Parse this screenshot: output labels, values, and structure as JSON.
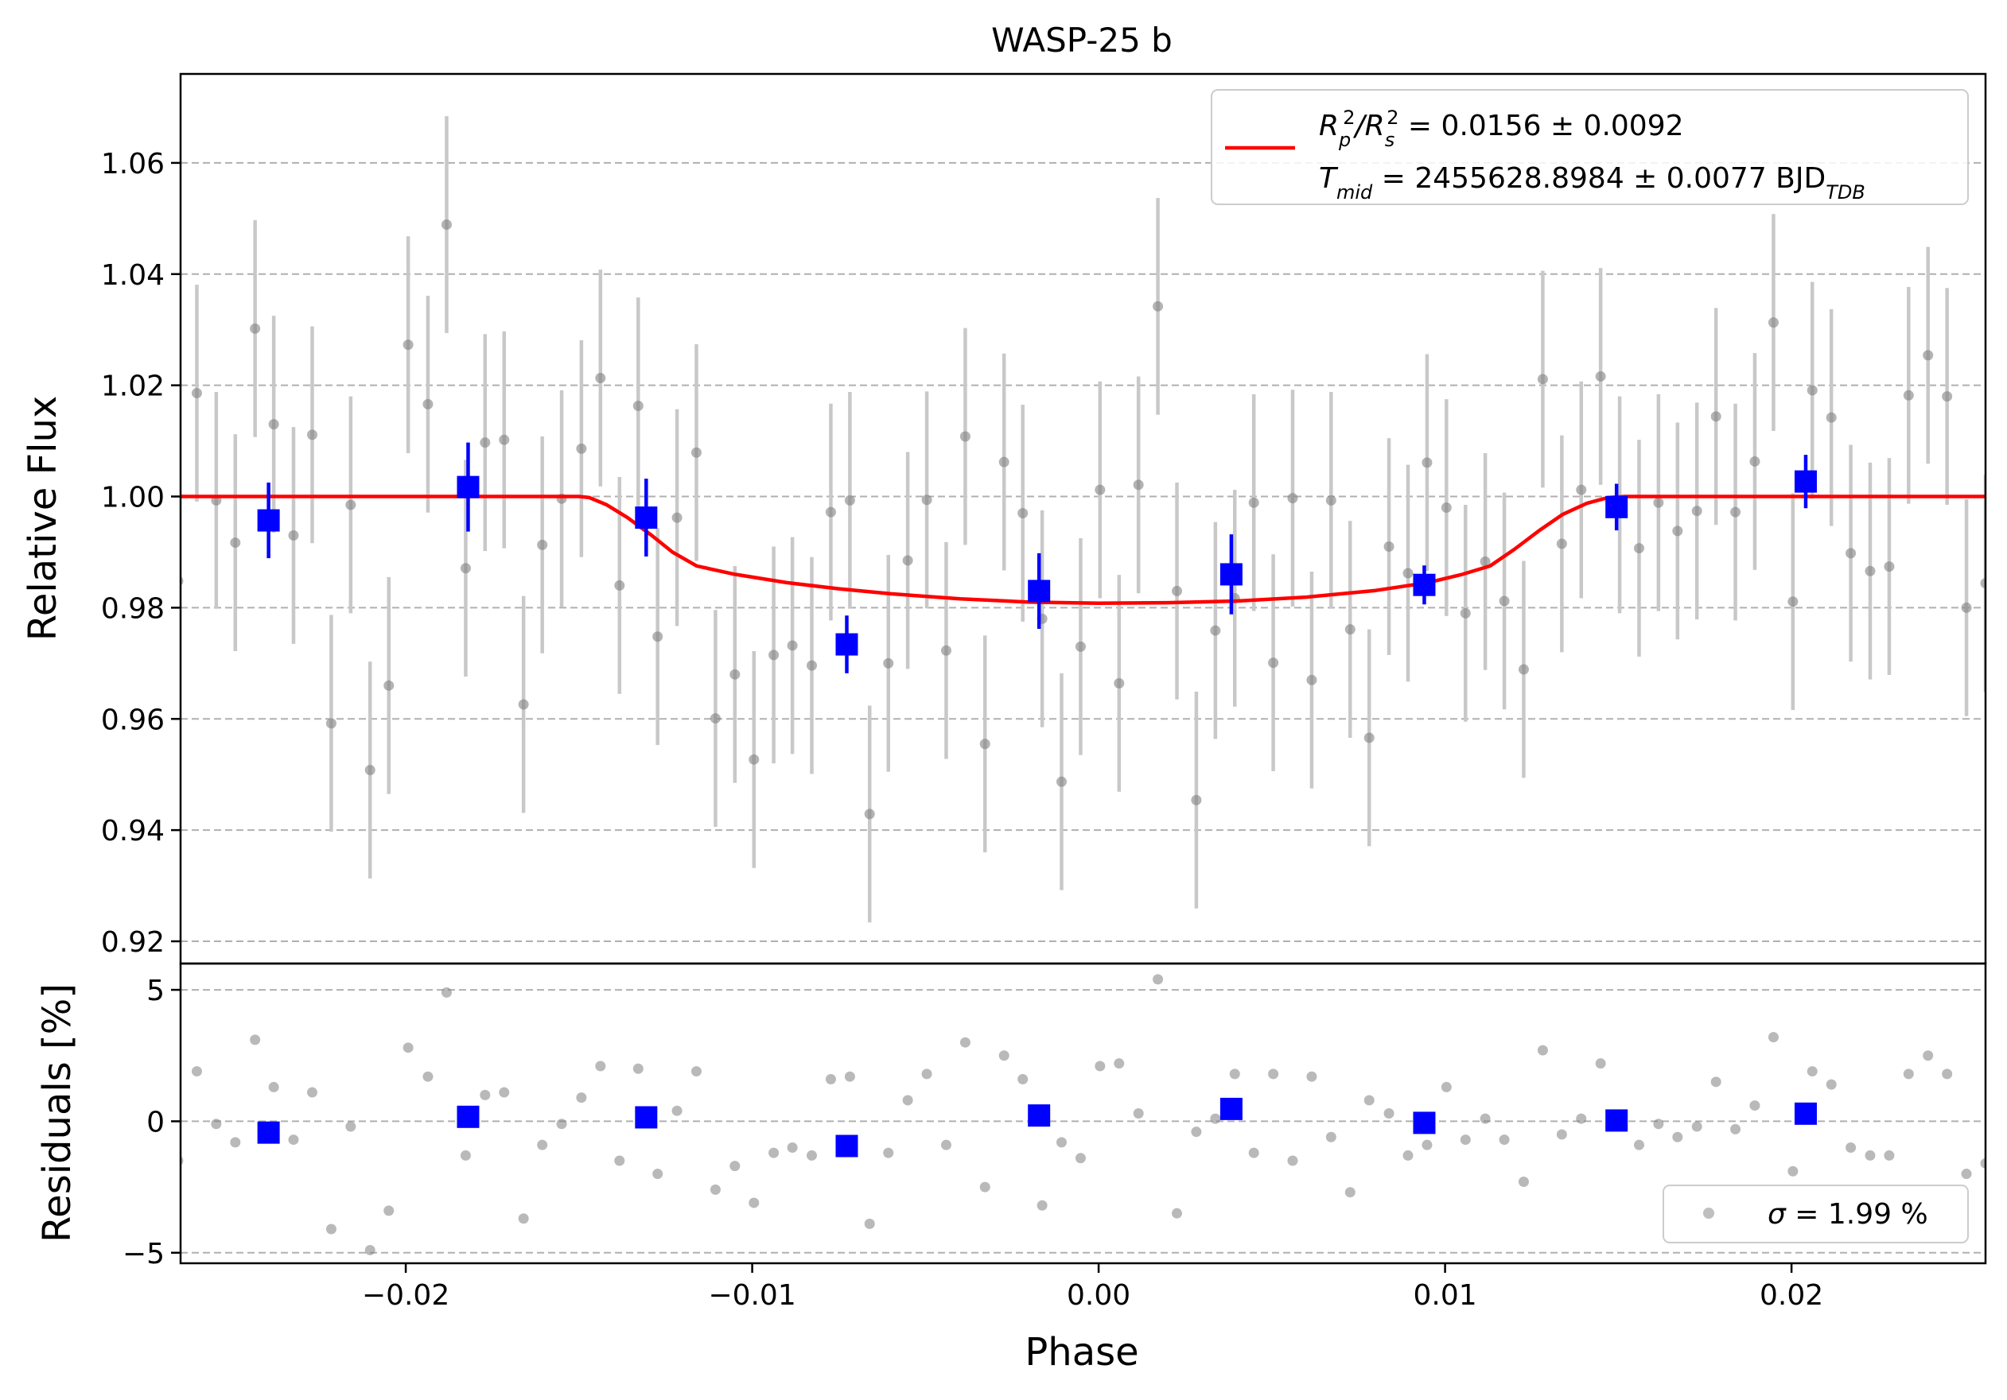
{
  "chart_data": {
    "type": "scatter",
    "title": "WASP-25 b",
    "top_panel": {
      "ylabel": "Relative Flux",
      "ylim": [
        0.916,
        1.076
      ],
      "yticks": [
        0.92,
        0.94,
        0.96,
        0.98,
        1.0,
        1.02,
        1.04,
        1.06
      ],
      "ytick_labels": [
        "0.92",
        "0.94",
        "0.96",
        "0.98",
        "1.00",
        "1.02",
        "1.04",
        "1.06"
      ],
      "grid": "horizontal dashed",
      "legend": {
        "placement": "top-right",
        "line1_parts": [
          "R",
          "p",
          "2",
          "/R",
          "s",
          "2",
          " = 0.0156 ± 0.0092"
        ],
        "line2_parts": [
          "T",
          "mid",
          " = 2455628.8984 ± 0.0077 BJD",
          "TDB"
        ]
      },
      "series": [
        {
          "kind": "raw",
          "color": "#808080",
          "errcolor": "#c8c8c8",
          "x": [
            -0.02657,
            -0.02603,
            -0.02547,
            -0.02492,
            -0.02435,
            -0.02381,
            -0.02324,
            -0.0227,
            -0.02215,
            -0.02159,
            -0.02103,
            -0.02049,
            -0.01993,
            -0.01936,
            -0.01882,
            -0.01827,
            -0.01771,
            -0.01716,
            -0.0166,
            -0.01606,
            -0.0155,
            -0.01493,
            -0.01438,
            -0.01383,
            -0.01329,
            -0.01273,
            -0.01217,
            -0.01161,
            -0.01106,
            -0.0105,
            -0.00995,
            -0.00938,
            -0.00884,
            -0.00828,
            -0.00773,
            -0.00718,
            -0.00661,
            -0.00607,
            -0.00551,
            -0.00496,
            -0.0044,
            -0.00385,
            -0.00328,
            -0.00273,
            -0.00219,
            -0.00163,
            -0.00107,
            -0.00052,
            4e-05,
            0.00059,
            0.00115,
            0.00171,
            0.00226,
            0.00282,
            0.00337,
            0.00393,
            0.00448,
            0.00504,
            0.0056,
            0.00615,
            0.00671,
            0.00726,
            0.00781,
            0.00838,
            0.00893,
            0.00948,
            0.01004,
            0.01059,
            0.01116,
            0.01171,
            0.01227,
            0.01282,
            0.01337,
            0.01393,
            0.01449,
            0.01504,
            0.0156,
            0.01616,
            0.01671,
            0.01727,
            0.01782,
            0.01838,
            0.01894,
            0.01948,
            0.02004,
            0.0206,
            0.02115,
            0.02171,
            0.02227,
            0.02282,
            0.02338,
            0.02394,
            0.02449,
            0.02505,
            0.0256
          ],
          "y": [
            0.9848,
            1.0186,
            0.9993,
            0.9917,
            1.0302,
            1.013,
            0.993,
            1.0111,
            0.9592,
            0.9985,
            0.9508,
            0.966,
            1.0273,
            1.0166,
            1.0489,
            0.9871,
            1.0097,
            1.0102,
            0.9626,
            0.9913,
            0.9996,
            1.0086,
            1.0213,
            0.984,
            1.0163,
            0.9748,
            0.9962,
            1.0079,
            0.9601,
            0.968,
            0.9527,
            0.9715,
            0.9732,
            0.9696,
            0.9972,
            0.9993,
            0.9429,
            0.97,
            0.9885,
            0.9994,
            0.9723,
            1.0108,
            0.9555,
            1.0062,
            0.997,
            0.978,
            0.9487,
            0.973,
            1.0012,
            0.9664,
            1.0021,
            1.0342,
            0.983,
            0.9454,
            0.9759,
            0.9817,
            0.9989,
            0.9701,
            0.9997,
            0.967,
            0.9993,
            0.9761,
            0.9566,
            0.991,
            0.9862,
            1.0061,
            0.998,
            0.979,
            0.9883,
            0.9812,
            0.9689,
            1.0211,
            0.9915,
            1.0012,
            1.0216,
            0.9985,
            0.9907,
            0.9989,
            0.9938,
            0.9974,
            1.0144,
            0.9972,
            1.0063,
            1.0313,
            0.9811,
            1.0191,
            1.0142,
            0.9898,
            0.9866,
            0.9874,
            1.0182,
            1.0254,
            1.018,
            0.98,
            0.9844
          ],
          "yerr": 0.0195
        },
        {
          "kind": "binned",
          "color": "#0000ff",
          "x": [
            -0.02396,
            -0.0182,
            -0.01306,
            -0.00727,
            -0.00172,
            0.00383,
            0.0094,
            0.01495,
            0.02041
          ],
          "y": [
            0.9957,
            1.0017,
            0.9962,
            0.9734,
            0.983,
            0.986,
            0.9841,
            0.9981,
            1.0027
          ],
          "yerr": [
            0.0068,
            0.008,
            0.007,
            0.0052,
            0.0068,
            0.0072,
            0.0035,
            0.0042,
            0.0048
          ]
        },
        {
          "kind": "model",
          "color": "#ff0000",
          "x": [
            -0.0265,
            -0.015,
            -0.0147,
            -0.0142,
            -0.0136,
            -0.0129,
            -0.0123,
            -0.0116,
            -0.0105,
            -0.009,
            -0.0075,
            -0.006,
            -0.004,
            -0.002,
            0.0,
            0.002,
            0.004,
            0.006,
            0.008,
            0.0095,
            0.0105,
            0.0113,
            0.012,
            0.0127,
            0.0134,
            0.0141,
            0.0147,
            0.0152,
            0.026
          ],
          "y": [
            1.0,
            1.0,
            0.9998,
            0.9985,
            0.9962,
            0.993,
            0.99,
            0.9875,
            0.986,
            0.9845,
            0.9834,
            0.9825,
            0.9816,
            0.981,
            0.9808,
            0.9809,
            0.9812,
            0.9819,
            0.9831,
            0.9845,
            0.986,
            0.9875,
            0.9905,
            0.9938,
            0.9968,
            0.9988,
            0.9998,
            1.0,
            1.0
          ]
        }
      ]
    },
    "bottom_panel": {
      "ylabel": "Residuals [%]",
      "ylim": [
        -5.4,
        6.0
      ],
      "yticks": [
        -5,
        0,
        5
      ],
      "ytick_labels": [
        "−5",
        "0",
        "5"
      ],
      "grid": "horizontal dashed",
      "legend": {
        "placement": "bottom-right",
        "label_parts": [
          "σ",
          " = 1.99 %"
        ]
      },
      "series": [
        {
          "kind": "raw",
          "color": "#808080",
          "x": [
            -0.02657,
            -0.02603,
            -0.02547,
            -0.02492,
            -0.02435,
            -0.02381,
            -0.02324,
            -0.0227,
            -0.02215,
            -0.02159,
            -0.02103,
            -0.02049,
            -0.01993,
            -0.01936,
            -0.01882,
            -0.01827,
            -0.01771,
            -0.01716,
            -0.0166,
            -0.01606,
            -0.0155,
            -0.01493,
            -0.01438,
            -0.01383,
            -0.01329,
            -0.01273,
            -0.01217,
            -0.01161,
            -0.01106,
            -0.0105,
            -0.00995,
            -0.00938,
            -0.00884,
            -0.00828,
            -0.00773,
            -0.00718,
            -0.00661,
            -0.00607,
            -0.00551,
            -0.00496,
            -0.0044,
            -0.00385,
            -0.00328,
            -0.00273,
            -0.00219,
            -0.00163,
            -0.00107,
            -0.00052,
            4e-05,
            0.00059,
            0.00115,
            0.00171,
            0.00226,
            0.00282,
            0.00337,
            0.00393,
            0.00448,
            0.00504,
            0.0056,
            0.00615,
            0.00671,
            0.00726,
            0.00781,
            0.00838,
            0.00893,
            0.00948,
            0.01004,
            0.01059,
            0.01116,
            0.01171,
            0.01227,
            0.01282,
            0.01337,
            0.01393,
            0.01449,
            0.01504,
            0.0156,
            0.01616,
            0.01671,
            0.01727,
            0.01782,
            0.01838,
            0.01894,
            0.01948,
            0.02004,
            0.0206,
            0.02115,
            0.02171,
            0.02227,
            0.02282,
            0.02338,
            0.02394,
            0.02449,
            0.02505,
            0.0256
          ],
          "y": [
            -1.5,
            1.9,
            -0.1,
            -0.8,
            3.1,
            1.3,
            -0.7,
            1.1,
            -4.1,
            -0.2,
            -4.9,
            -3.4,
            2.8,
            1.7,
            4.9,
            -1.3,
            1.0,
            1.1,
            -3.7,
            -0.9,
            -0.1,
            0.9,
            2.1,
            -1.5,
            2.0,
            -2.0,
            0.4,
            1.9,
            -2.6,
            -1.7,
            -3.1,
            -1.2,
            -1.0,
            -1.3,
            1.6,
            1.7,
            -3.9,
            -1.2,
            0.8,
            1.8,
            -0.9,
            3.0,
            -2.5,
            2.5,
            1.6,
            -3.2,
            -0.8,
            -1.4,
            2.1,
            2.2,
            0.3,
            5.4,
            -3.5,
            -0.4,
            0.1,
            1.8,
            -1.2,
            1.8,
            -1.5,
            1.7,
            -0.6,
            -2.7,
            0.8,
            0.3,
            -1.3,
            -0.9,
            1.3,
            -0.7,
            0.1,
            -0.7,
            -2.3,
            2.7,
            -0.5,
            0.1,
            2.2,
            -0.2,
            -0.9,
            -0.1,
            -0.6,
            -0.2,
            1.5,
            -0.3,
            0.6,
            3.2,
            -1.9,
            1.9,
            1.4,
            -1.0,
            -1.3,
            -1.3,
            1.8,
            2.5,
            1.8,
            -2.0,
            -1.6
          ]
        },
        {
          "kind": "binned",
          "color": "#0000ff",
          "x": [
            -0.02396,
            -0.0182,
            -0.01306,
            -0.00727,
            -0.00172,
            0.00383,
            0.0094,
            0.01495,
            0.02041
          ],
          "y": [
            -0.43,
            0.17,
            0.15,
            -0.94,
            0.22,
            0.47,
            -0.06,
            0.03,
            0.29
          ]
        }
      ]
    },
    "xaxis": {
      "xlabel": "Phase",
      "xlim": [
        -0.0265,
        0.0256
      ],
      "xticks": [
        -0.02,
        -0.01,
        0.0,
        0.01,
        0.02
      ],
      "xtick_labels": [
        "−0.02",
        "−0.01",
        "0.00",
        "0.01",
        "0.02"
      ]
    }
  }
}
